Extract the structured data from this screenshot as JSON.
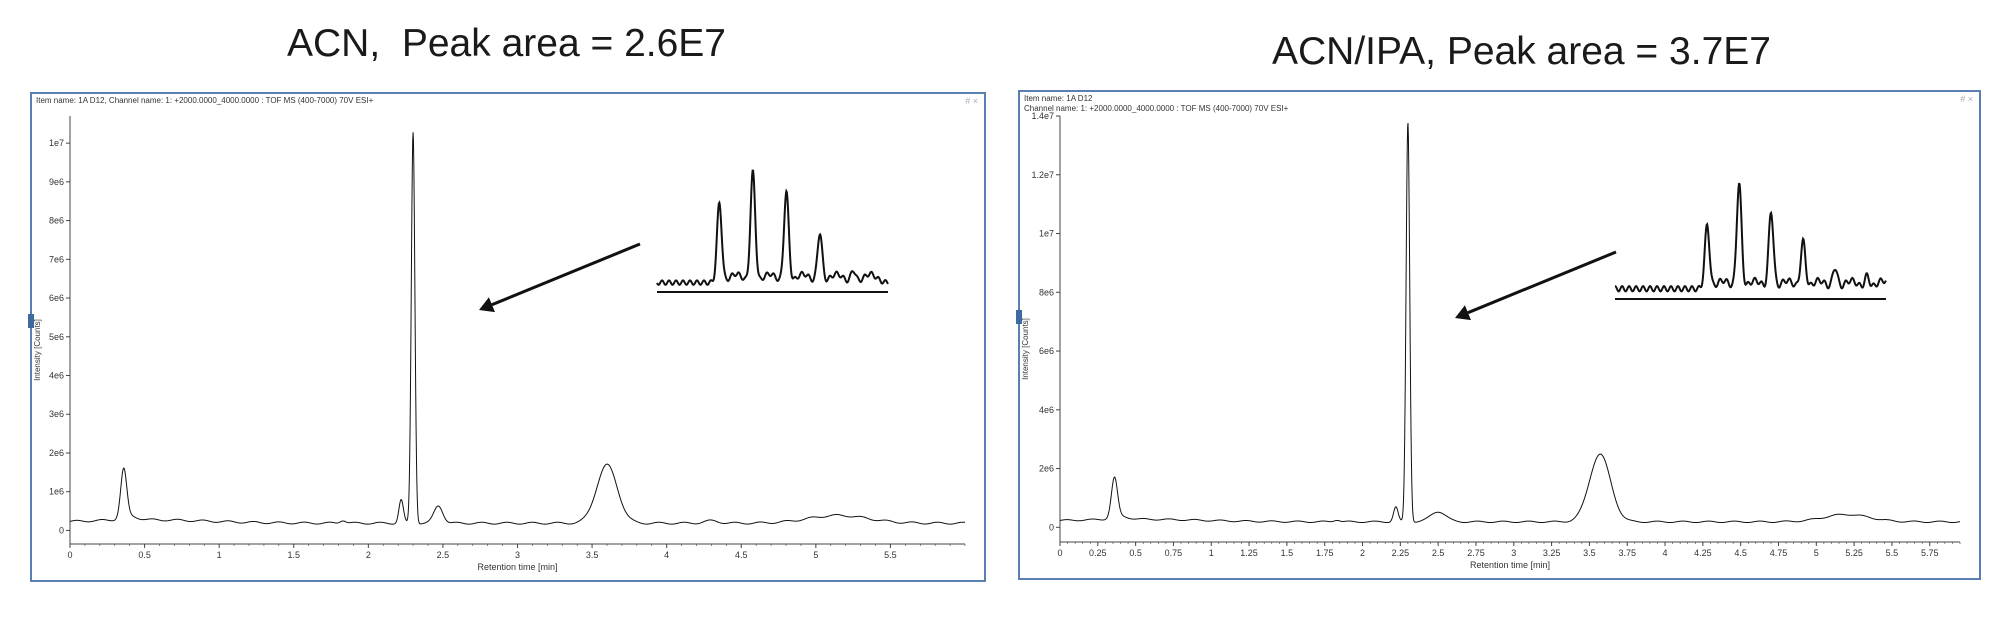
{
  "titles": {
    "left": "ACN,  Peak area = 2.6E7",
    "right": "ACN/IPA, Peak area = 3.7E7"
  },
  "panels": {
    "left": {
      "header_line1": "Item name: 1A D12, Channel name: 1: +2000.0000_4000.0000 : TOF MS (400-7000) 70V ESI+",
      "header_line2": ""
    },
    "right": {
      "header_line1": "Item name: 1A D12",
      "header_line2": "Channel name: 1: +2000.0000_4000.0000 : TOF MS (400-7000) 70V ESI+"
    }
  },
  "window_controls": "# ×",
  "colors": {
    "frame": "#5b7fb0",
    "trace": "#111111",
    "axis": "#444444"
  },
  "chart_data": [
    {
      "type": "line",
      "title": "ACN,  Peak area = 2.6E7",
      "xlabel": "Retention time [min]",
      "ylabel": "Intensity [Counts]",
      "xlim": [
        0,
        6.0
      ],
      "ylim": [
        -350000.0,
        10700000.0
      ],
      "xticks": [
        0,
        0.5,
        1,
        1.5,
        2,
        2.5,
        3,
        3.5,
        4,
        4.5,
        5,
        5.5
      ],
      "xtick_labels": [
        "0",
        "0.5",
        "1",
        "1.5",
        "2",
        "2.5",
        "3",
        "3.5",
        "4",
        "4.5",
        "5",
        "5.5"
      ],
      "yticks": [
        0,
        1000000.0,
        2000000.0,
        3000000.0,
        4000000.0,
        5000000.0,
        6000000.0,
        7000000.0,
        8000000.0,
        9000000.0,
        10000000.0
      ],
      "ytick_labels": [
        "0",
        "1e6",
        "2e6",
        "3e6",
        "4e6",
        "5e6",
        "6e6",
        "7e6",
        "8e6",
        "9e6",
        "1e7"
      ],
      "baseline": 250000.0,
      "peaks": [
        {
          "rt": 0.36,
          "height": 1250000.0,
          "width": 0.02
        },
        {
          "rt": 0.4,
          "height": 100000.0,
          "width": 0.05
        },
        {
          "rt": 1.83,
          "height": 80000.0,
          "width": 0.02
        },
        {
          "rt": 2.22,
          "height": 600000.0,
          "width": 0.015
        },
        {
          "rt": 2.3,
          "height": 10100000.0,
          "width": 0.012
        },
        {
          "rt": 2.47,
          "height": 450000.0,
          "width": 0.03
        },
        {
          "rt": 3.6,
          "height": 1500000.0,
          "width": 0.07
        },
        {
          "rt": 4.3,
          "height": 60000.0,
          "width": 0.05
        },
        {
          "rt": 5.15,
          "height": 200000.0,
          "width": 0.2
        }
      ],
      "inset": {
        "peaks": [
          0.72,
          1.0,
          0.82,
          0.45,
          0.11
        ],
        "baseline_level": 0.04
      }
    },
    {
      "type": "line",
      "title": "ACN/IPA, Peak area = 3.7E7",
      "xlabel": "Retention time [min]",
      "ylabel": "Intensity [Counts]",
      "xlim": [
        0,
        5.95
      ],
      "ylim": [
        -500000.0,
        14000000.0
      ],
      "xticks": [
        0,
        0.25,
        0.5,
        0.75,
        1,
        1.25,
        1.5,
        1.75,
        2,
        2.25,
        2.5,
        2.75,
        3,
        3.25,
        3.5,
        3.75,
        4,
        4.25,
        4.5,
        4.75,
        5,
        5.25,
        5.5,
        5.75
      ],
      "xtick_labels": [
        "0",
        "0.25",
        "0.5",
        "0.75",
        "1",
        "1.25",
        "1.5",
        "1.75",
        "2",
        "2.25",
        "2.5",
        "2.75",
        "3",
        "3.25",
        "3.5",
        "3.75",
        "4",
        "4.25",
        "4.5",
        "4.75",
        "5",
        "5.25",
        "5.5",
        "5.75"
      ],
      "yticks": [
        0,
        2000000.0,
        4000000.0,
        6000000.0,
        8000000.0,
        10000000.0,
        12000000.0,
        14000000.0
      ],
      "ytick_labels": [
        "0",
        "2e6",
        "4e6",
        "6e6",
        "8e6",
        "1e7",
        "1.2e7",
        "1.4e7"
      ],
      "baseline": 250000.0,
      "peaks": [
        {
          "rt": 0.36,
          "height": 1350000.0,
          "width": 0.02
        },
        {
          "rt": 0.4,
          "height": 100000.0,
          "width": 0.05
        },
        {
          "rt": 1.83,
          "height": 70000.0,
          "width": 0.02
        },
        {
          "rt": 2.22,
          "height": 500000.0,
          "width": 0.015
        },
        {
          "rt": 2.3,
          "height": 13600000.0,
          "width": 0.012
        },
        {
          "rt": 2.5,
          "height": 350000.0,
          "width": 0.05
        },
        {
          "rt": 3.57,
          "height": 2300000.0,
          "width": 0.07
        },
        {
          "rt": 5.2,
          "height": 250000.0,
          "width": 0.15
        }
      ],
      "inset": {
        "peaks": [
          0.6,
          1.0,
          0.73,
          0.45,
          0.2,
          0.12
        ],
        "baseline_level": 0.05
      }
    }
  ]
}
